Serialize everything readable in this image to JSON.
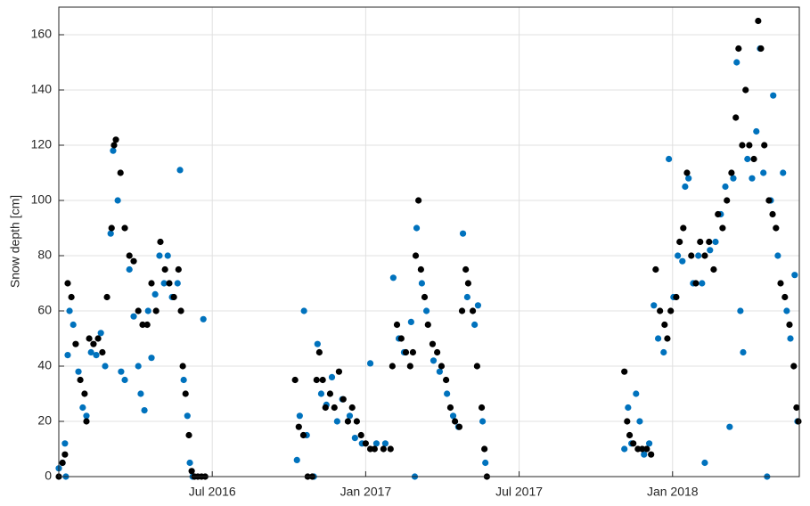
{
  "chart_data": {
    "type": "scatter",
    "ylabel": "Snow depth [cm]",
    "xlim": [
      2016.0,
      2018.413
    ],
    "xticks": [
      {
        "value": 2016.5,
        "label": "Jul 2016"
      },
      {
        "value": 2017.0,
        "label": "Jan 2017"
      },
      {
        "value": 2017.5,
        "label": "Jul 2017"
      },
      {
        "value": 2018.0,
        "label": "Jan 2018"
      }
    ],
    "ylim": [
      0,
      170
    ],
    "yticks": [
      0,
      20,
      40,
      60,
      80,
      100,
      120,
      140,
      160
    ],
    "grid": true,
    "series": [
      {
        "color": "#0072bd",
        "x": [
          2016.0,
          2016.012,
          2016.02,
          2016.023,
          2016.029,
          2016.035,
          2016.047,
          2016.064,
          2016.078,
          2016.09,
          2016.105,
          2016.122,
          2016.137,
          2016.151,
          2016.169,
          2016.177,
          2016.192,
          2016.203,
          2016.215,
          2016.23,
          2016.244,
          2016.259,
          2016.267,
          2016.279,
          2016.291,
          2016.302,
          2016.314,
          2016.328,
          2016.343,
          2016.355,
          2016.369,
          2016.387,
          2016.395,
          2016.407,
          2016.419,
          2016.427,
          2016.436,
          2016.471,
          2016.776,
          2016.785,
          2016.799,
          2016.808,
          2016.831,
          2016.843,
          2016.855,
          2016.872,
          2016.89,
          2016.907,
          2016.924,
          2016.948,
          2016.965,
          2016.988,
          2017.015,
          2017.035,
          2017.064,
          2017.09,
          2017.108,
          2017.125,
          2017.148,
          2017.16,
          2017.166,
          2017.183,
          2017.198,
          2017.221,
          2017.241,
          2017.265,
          2017.285,
          2017.302,
          2017.317,
          2017.331,
          2017.355,
          2017.366,
          2017.381,
          2017.39,
          2017.843,
          2017.855,
          2017.866,
          2017.881,
          2017.893,
          2017.907,
          2017.924,
          2017.939,
          2017.953,
          2017.971,
          2017.988,
          2018.003,
          2018.017,
          2018.032,
          2018.041,
          2018.052,
          2018.067,
          2018.084,
          2018.096,
          2018.105,
          2018.122,
          2018.14,
          2018.157,
          2018.172,
          2018.186,
          2018.198,
          2018.209,
          2018.221,
          2018.23,
          2018.244,
          2018.259,
          2018.273,
          2018.285,
          2018.296,
          2018.308,
          2018.32,
          2018.328,
          2018.343,
          2018.36,
          2018.372,
          2018.384,
          2018.398,
          2018.407
        ],
        "values": [
          3,
          5,
          12,
          0,
          44,
          60,
          55,
          38,
          25,
          22,
          45,
          44,
          52,
          40,
          88,
          118,
          100,
          38,
          35,
          75,
          58,
          40,
          30,
          24,
          60,
          43,
          66,
          80,
          70,
          80,
          65,
          70,
          111,
          35,
          22,
          5,
          0,
          57,
          6,
          22,
          60,
          15,
          0,
          48,
          30,
          26,
          36,
          20,
          28,
          22,
          14,
          12,
          41,
          12,
          12,
          72,
          50,
          45,
          56,
          0,
          90,
          70,
          60,
          42,
          38,
          30,
          22,
          18,
          88,
          65,
          55,
          62,
          20,
          5,
          10,
          25,
          12,
          30,
          20,
          8,
          12,
          62,
          50,
          45,
          115,
          65,
          80,
          78,
          105,
          108,
          70,
          80,
          70,
          5,
          82,
          85,
          95,
          105,
          18,
          108,
          150,
          60,
          45,
          115,
          108,
          125,
          155,
          110,
          0,
          100,
          138,
          80,
          110,
          60,
          50,
          73,
          20
        ]
      },
      {
        "color": "#000000",
        "x": [
          2016.0,
          2016.012,
          2016.02,
          2016.029,
          2016.041,
          2016.055,
          2016.07,
          2016.084,
          2016.09,
          2016.099,
          2016.113,
          2016.128,
          2016.142,
          2016.157,
          2016.172,
          2016.18,
          2016.186,
          2016.201,
          2016.215,
          2016.23,
          2016.244,
          2016.259,
          2016.273,
          2016.288,
          2016.302,
          2016.317,
          2016.331,
          2016.346,
          2016.36,
          2016.375,
          2016.39,
          2016.398,
          2016.404,
          2016.413,
          2016.424,
          2016.433,
          2016.442,
          2016.453,
          2016.465,
          2016.477,
          2016.77,
          2016.782,
          2016.797,
          2016.811,
          2016.826,
          2016.84,
          2016.849,
          2016.86,
          2016.869,
          2016.884,
          2016.898,
          2016.913,
          2016.927,
          2016.942,
          2016.956,
          2016.971,
          2016.985,
          2017.0,
          2017.015,
          2017.029,
          2017.058,
          2017.081,
          2017.087,
          2017.102,
          2017.116,
          2017.131,
          2017.145,
          2017.154,
          2017.163,
          2017.172,
          2017.18,
          2017.192,
          2017.203,
          2017.218,
          2017.233,
          2017.247,
          2017.262,
          2017.276,
          2017.291,
          2017.305,
          2017.314,
          2017.326,
          2017.334,
          2017.349,
          2017.363,
          2017.378,
          2017.387,
          2017.395,
          2017.843,
          2017.852,
          2017.86,
          2017.872,
          2017.887,
          2017.901,
          2017.916,
          2017.93,
          2017.945,
          2017.959,
          2017.974,
          2017.983,
          2017.994,
          2018.012,
          2018.023,
          2018.035,
          2018.047,
          2018.061,
          2018.076,
          2018.09,
          2018.105,
          2018.119,
          2018.134,
          2018.148,
          2018.163,
          2018.177,
          2018.192,
          2018.206,
          2018.215,
          2018.227,
          2018.238,
          2018.25,
          2018.265,
          2018.279,
          2018.288,
          2018.299,
          2018.314,
          2018.326,
          2018.337,
          2018.352,
          2018.366,
          2018.381,
          2018.395,
          2018.404,
          2018.41
        ],
        "values": [
          0,
          5,
          8,
          70,
          65,
          48,
          35,
          30,
          20,
          50,
          48,
          50,
          45,
          65,
          90,
          120,
          122,
          110,
          90,
          80,
          78,
          60,
          55,
          55,
          70,
          60,
          85,
          75,
          70,
          65,
          75,
          60,
          40,
          30,
          15,
          2,
          0,
          0,
          0,
          0,
          35,
          18,
          15,
          0,
          0,
          35,
          45,
          35,
          25,
          30,
          25,
          38,
          28,
          20,
          25,
          20,
          15,
          12,
          10,
          10,
          10,
          10,
          40,
          55,
          50,
          45,
          40,
          45,
          80,
          100,
          75,
          65,
          55,
          48,
          45,
          40,
          35,
          25,
          20,
          18,
          60,
          75,
          70,
          60,
          40,
          25,
          10,
          0,
          38,
          20,
          15,
          12,
          10,
          10,
          10,
          8,
          75,
          60,
          55,
          50,
          60,
          65,
          85,
          90,
          110,
          80,
          70,
          85,
          80,
          85,
          75,
          95,
          90,
          100,
          110,
          130,
          155,
          120,
          140,
          120,
          115,
          165,
          155,
          120,
          100,
          95,
          90,
          70,
          65,
          55,
          40,
          25,
          20
        ]
      }
    ]
  }
}
